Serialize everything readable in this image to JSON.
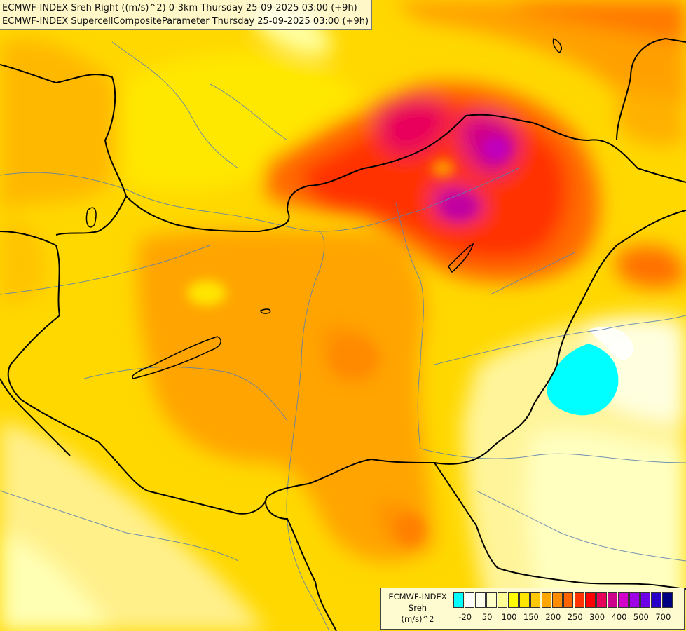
{
  "title": {
    "line1": "ECMWF-INDEX Sreh Right ((m/s)^2) 0-3km Thursday 25-09-2025 03:00 (+9h)",
    "line2": "ECMWF-INDEX SupercellCompositeParameter Thursday 25-09-2025 03:00 (+9h)"
  },
  "legend": {
    "model": "ECMWF-INDEX",
    "variable": "Sreh",
    "unit": "(m/s)^2",
    "colors": [
      "#00ffff",
      "#ffffff",
      "#fffff0",
      "#ffffc8",
      "#ffff96",
      "#ffff00",
      "#ffe600",
      "#ffc800",
      "#ffa500",
      "#ff8c00",
      "#ff6400",
      "#ff3200",
      "#ff0000",
      "#e6005a",
      "#cd008c",
      "#d200c8",
      "#a000e6",
      "#6e00e6",
      "#2800c8",
      "#000080"
    ],
    "ticks": [
      "-20",
      "50",
      "100",
      "150",
      "200",
      "250",
      "300",
      "400",
      "500",
      "700"
    ]
  },
  "fields": {
    "background": "#ffe100",
    "cyan_zone": "#00ffff",
    "border_color": "#000000",
    "river_color": "#5a7fb0"
  }
}
